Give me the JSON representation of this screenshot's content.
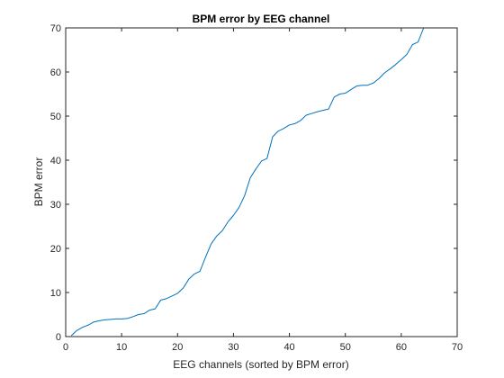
{
  "chart_data": {
    "type": "line",
    "title": "BPM error by EEG channel",
    "xlabel": "EEG channels (sorted by BPM error)",
    "ylabel": "BPM error",
    "xlim": [
      0,
      70
    ],
    "ylim": [
      0,
      70
    ],
    "xticks": [
      0,
      10,
      20,
      30,
      40,
      50,
      60,
      70
    ],
    "yticks": [
      0,
      10,
      20,
      30,
      40,
      50,
      60,
      70
    ],
    "grid": false,
    "line_color": "#0072BD",
    "axis_color": "#262626",
    "series": [
      {
        "x": [
          1,
          2,
          3,
          4,
          5,
          6,
          7,
          8,
          9,
          10,
          11,
          12,
          13,
          14,
          15,
          16,
          17,
          18,
          19,
          20,
          21,
          22,
          23,
          24,
          25,
          26,
          27,
          28,
          29,
          30,
          31,
          32,
          33,
          34,
          35,
          36,
          37,
          38,
          39,
          40,
          41,
          42,
          43,
          44,
          45,
          46,
          47,
          48,
          49,
          50,
          51,
          52,
          53,
          54,
          55,
          56,
          57,
          58,
          59,
          60,
          61,
          62,
          63,
          64
        ],
        "y": [
          0.2,
          1.4,
          2.1,
          2.6,
          3.3,
          3.6,
          3.8,
          3.9,
          4.0,
          4.0,
          4.1,
          4.5,
          5.0,
          5.2,
          6.0,
          6.3,
          8.3,
          8.6,
          9.2,
          9.8,
          11.0,
          13.0,
          14.2,
          14.8,
          18.0,
          21.0,
          22.8,
          24.0,
          26.0,
          27.5,
          29.3,
          32.0,
          36.0,
          38.0,
          39.8,
          40.4,
          45.3,
          46.6,
          47.2,
          48.0,
          48.3,
          49.0,
          50.2,
          50.6,
          51.0,
          51.3,
          51.6,
          54.3,
          55.0,
          55.2,
          56.0,
          56.8,
          57.0,
          57.0,
          57.5,
          58.5,
          59.8,
          60.7,
          61.7,
          62.8,
          64.0,
          66.2,
          66.8,
          70.0
        ]
      }
    ]
  }
}
